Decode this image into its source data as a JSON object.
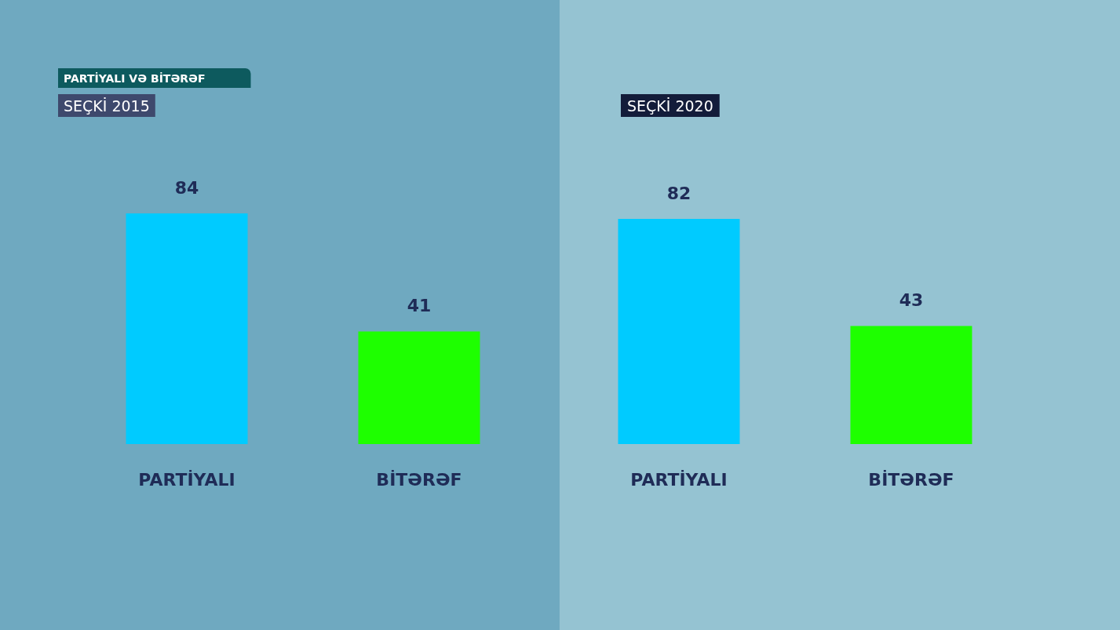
{
  "chart_data": [
    {
      "type": "bar",
      "title": "PARTİYALI VƏ BİTƏRƏF",
      "subtitle": "SEÇKİ 2015",
      "categories": [
        "PARTİYALI",
        "BİTƏRƏF"
      ],
      "values": [
        84,
        41
      ],
      "colors": [
        "#00cbff",
        "#1eff00"
      ],
      "data_labels": true
    },
    {
      "type": "bar",
      "title": "SEÇKİ 2020",
      "categories": [
        "PARTİYALI",
        "BİTƏRƏF"
      ],
      "values": [
        82,
        43
      ],
      "colors": [
        "#00cbff",
        "#1eff00"
      ],
      "data_labels": true
    }
  ]
}
